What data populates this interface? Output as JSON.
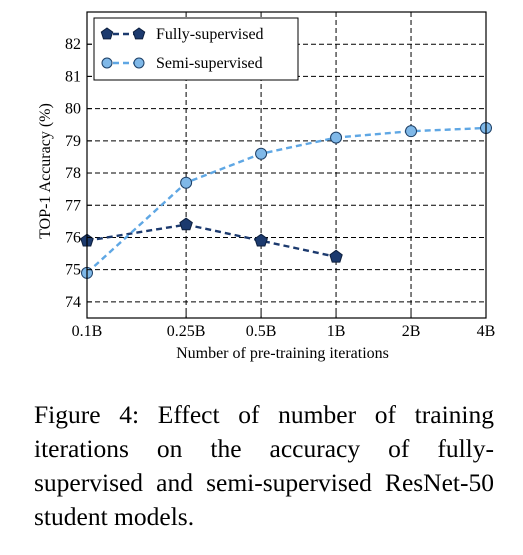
{
  "chart_data": {
    "type": "line",
    "xlabel": "Number of pre-training iterations",
    "ylabel": "TOP-1 Accuracy (%)",
    "categories": [
      "0.1B",
      "0.25B",
      "0.5B",
      "1B",
      "2B",
      "4B"
    ],
    "x": [
      0.1,
      0.25,
      0.5,
      1,
      2,
      4
    ],
    "x_scale": "log",
    "ylim": [
      73.5,
      83
    ],
    "yticks": [
      74,
      75,
      76,
      77,
      78,
      79,
      80,
      81,
      82
    ],
    "grid": true,
    "legend": "top-left",
    "series": [
      {
        "name": "Fully-supervised",
        "marker": "pentagon",
        "line": "dashed",
        "color": "#1c3a6e",
        "fill": "#1c3a6e",
        "x": [
          0.1,
          0.25,
          0.5,
          1
        ],
        "values": [
          75.9,
          76.4,
          75.9,
          75.4
        ]
      },
      {
        "name": "Semi-supervised",
        "marker": "circle",
        "line": "dashed",
        "color": "#5fa7e4",
        "fill": "#7fb8e8",
        "x": [
          0.1,
          0.25,
          0.5,
          1,
          2,
          4
        ],
        "values": [
          74.9,
          77.7,
          78.6,
          79.1,
          79.3,
          79.4
        ]
      }
    ]
  },
  "caption": "Figure 4: Effect of number of training iterations on the accuracy of fully-supervised and semi-supervised ResNet-50 student models."
}
